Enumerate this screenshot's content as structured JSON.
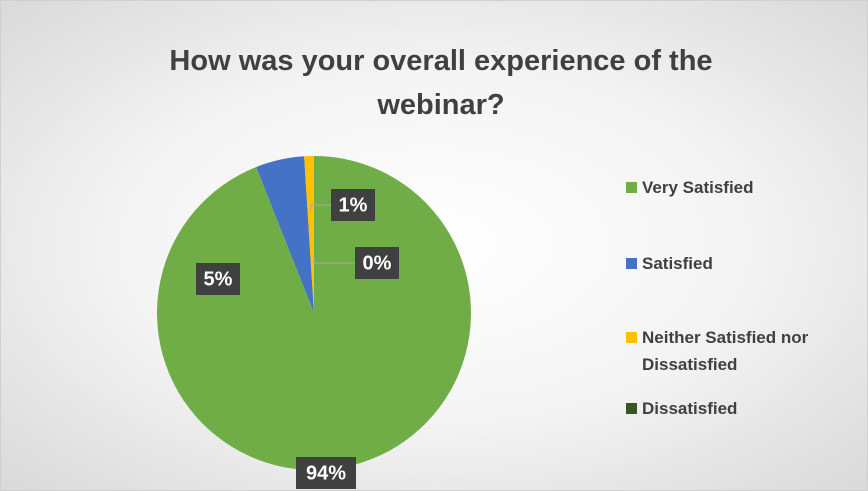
{
  "chart_data": {
    "type": "pie",
    "title": "How was your overall experience of the webinar?",
    "categories": [
      "Very Satisfied",
      "Satisfied",
      "Neither Satisfied nor Dissatisfied",
      "Dissatisfied"
    ],
    "values": [
      94,
      5,
      1,
      0
    ],
    "value_labels": [
      "94%",
      "5%",
      "1%",
      "0%"
    ],
    "colors": [
      "#70ad47",
      "#4472c4",
      "#ffc000",
      "#375623"
    ],
    "legend": "right"
  }
}
